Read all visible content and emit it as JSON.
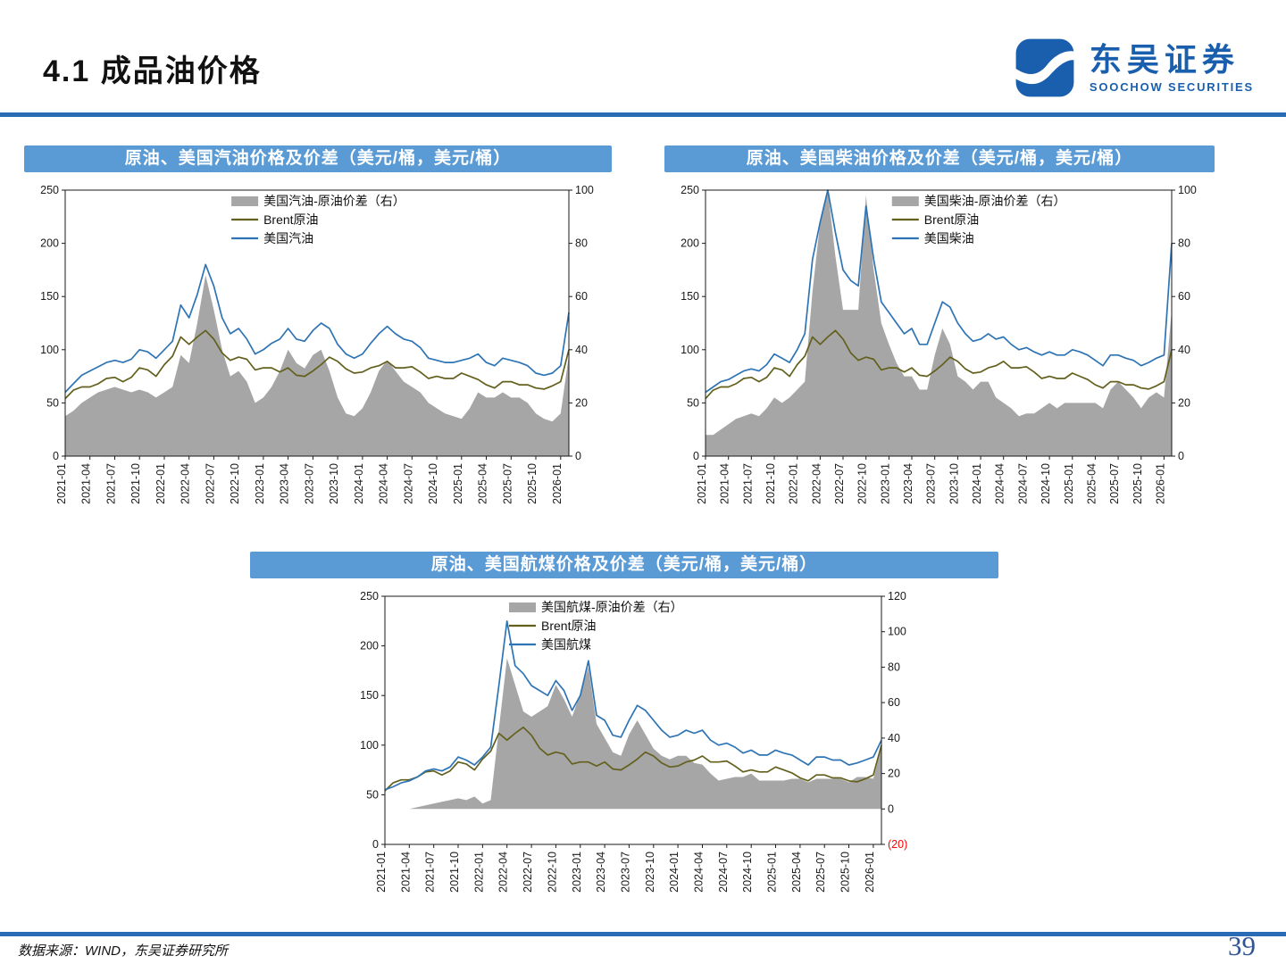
{
  "header": {
    "title": "4.1 成品油价格",
    "brand_cn": "东吴证券",
    "brand_en": "SOOCHOW SECURITIES"
  },
  "footer": {
    "source": "数据来源：WIND，东吴证券研究所",
    "page_number": "39"
  },
  "colors": {
    "product_line": "#2E74B5",
    "brent_line": "#63601D",
    "spread_area": "#A6A6A6",
    "panel_header_bg": "#5B9BD5",
    "accent_rule": "#2A6BB8",
    "neg_tick": "#FF0000",
    "axis": "#1a1a1a"
  },
  "chart_data": [
    {
      "type": "line+area",
      "title": "原油、美国汽油价格及价差（美元/桶，美元/桶）",
      "left_ylim": [
        0,
        250
      ],
      "right_ylim": [
        0,
        100
      ],
      "left_ticks": [
        0,
        50,
        100,
        150,
        200,
        250
      ],
      "right_ticks": [
        [
          100,
          "100"
        ],
        [
          80,
          "80"
        ],
        [
          60,
          "60"
        ],
        [
          40,
          "40"
        ],
        [
          20,
          "20"
        ],
        [
          0,
          "0"
        ]
      ],
      "legend_x": 0.33,
      "legend": [
        {
          "type": "area",
          "label": "美国汽油-原油价差（右）"
        },
        {
          "type": "line",
          "series": "brent",
          "label": "Brent原油"
        },
        {
          "type": "line",
          "series": "product",
          "label": "美国汽油"
        }
      ],
      "x_tick_labels": [
        "2021-01",
        "2021-04",
        "2021-07",
        "2021-10",
        "2022-01",
        "2022-04",
        "2022-07",
        "2022-10",
        "2023-01",
        "2023-04",
        "2023-07",
        "2023-10",
        "2024-01",
        "2024-04",
        "2024-07",
        "2024-10",
        "2025-01",
        "2025-04",
        "2025-07",
        "2025-10",
        "2026-01"
      ],
      "series": {
        "spread": [
          15,
          17,
          20,
          22,
          24,
          25,
          26,
          25,
          24,
          25,
          24,
          22,
          24,
          26,
          38,
          35,
          50,
          68,
          55,
          40,
          30,
          32,
          28,
          20,
          22,
          26,
          32,
          40,
          35,
          33,
          38,
          40,
          32,
          22,
          16,
          15,
          18,
          24,
          32,
          36,
          32,
          28,
          26,
          24,
          20,
          18,
          16,
          15,
          14,
          18,
          24,
          22,
          22,
          24,
          22,
          22,
          20,
          16,
          14,
          13,
          16,
          38
        ],
        "brent": [
          54,
          62,
          65,
          65,
          68,
          73,
          74,
          70,
          74,
          83,
          81,
          75,
          86,
          94,
          112,
          105,
          112,
          118,
          110,
          97,
          90,
          93,
          91,
          81,
          83,
          83,
          79,
          83,
          76,
          75,
          80,
          86,
          93,
          89,
          82,
          78,
          79,
          83,
          85,
          89,
          83,
          83,
          84,
          79,
          73,
          75,
          73,
          73,
          78,
          75,
          72,
          67,
          64,
          70,
          70,
          67,
          67,
          64,
          63,
          66,
          70,
          100
        ],
        "product": [
          60,
          68,
          76,
          80,
          84,
          88,
          90,
          88,
          91,
          100,
          98,
          92,
          100,
          108,
          142,
          130,
          152,
          180,
          160,
          130,
          115,
          120,
          110,
          96,
          100,
          106,
          110,
          120,
          110,
          108,
          118,
          125,
          120,
          105,
          96,
          92,
          96,
          106,
          115,
          122,
          115,
          110,
          108,
          102,
          92,
          90,
          88,
          88,
          90,
          92,
          96,
          88,
          85,
          92,
          90,
          88,
          85,
          78,
          76,
          78,
          85,
          135
        ]
      }
    },
    {
      "type": "line+area",
      "title": "原油、美国柴油价格及价差（美元/桶，美元/桶）",
      "left_ylim": [
        0,
        250
      ],
      "right_ylim": [
        0,
        100
      ],
      "left_ticks": [
        0,
        50,
        100,
        150,
        200,
        250
      ],
      "right_ticks": [
        [
          100,
          "100"
        ],
        [
          80,
          "80"
        ],
        [
          60,
          "60"
        ],
        [
          40,
          "40"
        ],
        [
          20,
          "20"
        ],
        [
          0,
          "0"
        ]
      ],
      "legend_x": 0.4,
      "legend": [
        {
          "type": "area",
          "label": "美国柴油-原油价差（右）"
        },
        {
          "type": "line",
          "series": "brent",
          "label": "Brent原油"
        },
        {
          "type": "line",
          "series": "product",
          "label": "美国柴油"
        }
      ],
      "x_tick_labels": [
        "2021-01",
        "2021-04",
        "2021-07",
        "2021-10",
        "2022-01",
        "2022-04",
        "2022-07",
        "2022-10",
        "2023-01",
        "2023-04",
        "2023-07",
        "2023-10",
        "2024-01",
        "2024-04",
        "2024-07",
        "2024-10",
        "2025-01",
        "2025-04",
        "2025-07",
        "2025-10",
        "2026-01"
      ],
      "series": {
        "spread": [
          8,
          8,
          10,
          12,
          14,
          15,
          16,
          15,
          18,
          22,
          20,
          22,
          25,
          28,
          62,
          88,
          100,
          75,
          55,
          55,
          55,
          98,
          70,
          50,
          42,
          35,
          30,
          30,
          25,
          25,
          38,
          48,
          42,
          30,
          28,
          25,
          28,
          28,
          22,
          20,
          18,
          15,
          16,
          16,
          18,
          20,
          18,
          20,
          20,
          20,
          20,
          20,
          18,
          25,
          28,
          25,
          22,
          18,
          22,
          24,
          22,
          55
        ],
        "brent": [
          54,
          62,
          65,
          65,
          68,
          73,
          74,
          70,
          74,
          83,
          81,
          75,
          86,
          94,
          112,
          105,
          112,
          118,
          110,
          97,
          90,
          93,
          91,
          81,
          83,
          83,
          79,
          83,
          76,
          75,
          80,
          86,
          93,
          89,
          82,
          78,
          79,
          83,
          85,
          89,
          83,
          83,
          84,
          79,
          73,
          75,
          73,
          73,
          78,
          75,
          72,
          67,
          64,
          70,
          70,
          67,
          67,
          64,
          63,
          66,
          70,
          100
        ],
        "product": [
          60,
          65,
          70,
          72,
          76,
          80,
          82,
          80,
          86,
          96,
          92,
          88,
          100,
          115,
          185,
          220,
          250,
          210,
          175,
          165,
          160,
          235,
          185,
          145,
          135,
          125,
          115,
          120,
          105,
          105,
          125,
          145,
          140,
          125,
          115,
          108,
          110,
          115,
          110,
          112,
          105,
          100,
          102,
          98,
          95,
          98,
          95,
          95,
          100,
          98,
          95,
          90,
          85,
          95,
          95,
          92,
          90,
          85,
          88,
          92,
          95,
          200
        ]
      }
    },
    {
      "type": "line+area",
      "title": "原油、美国航煤价格及价差（美元/桶，美元/桶）",
      "left_ylim": [
        0,
        250
      ],
      "right_ylim": [
        -20,
        120
      ],
      "left_ticks": [
        0,
        50,
        100,
        150,
        200,
        250
      ],
      "right_ticks": [
        [
          120,
          "120"
        ],
        [
          100,
          "100"
        ],
        [
          80,
          "80"
        ],
        [
          60,
          "60"
        ],
        [
          40,
          "40"
        ],
        [
          20,
          "20"
        ],
        [
          0,
          "0"
        ],
        [
          -20,
          "(20)"
        ]
      ],
      "legend_x": 0.25,
      "legend": [
        {
          "type": "area",
          "label": "美国航煤-原油价差（右）"
        },
        {
          "type": "line",
          "series": "brent",
          "label": "Brent原油"
        },
        {
          "type": "line",
          "series": "product",
          "label": "美国航煤"
        }
      ],
      "x_tick_labels": [
        "2021-01",
        "2021-04",
        "2021-07",
        "2021-10",
        "2022-01",
        "2022-04",
        "2022-07",
        "2022-10",
        "2023-01",
        "2023-04",
        "2023-07",
        "2023-10",
        "2024-01",
        "2024-04",
        "2024-07",
        "2024-10",
        "2025-01",
        "2025-04",
        "2025-07",
        "2025-10",
        "2026-01"
      ],
      "series": {
        "spread": [
          0,
          0,
          0,
          0,
          1,
          2,
          3,
          4,
          5,
          6,
          5,
          7,
          3,
          5,
          45,
          85,
          70,
          55,
          52,
          55,
          58,
          70,
          62,
          52,
          65,
          80,
          48,
          40,
          32,
          30,
          42,
          50,
          42,
          34,
          30,
          28,
          30,
          30,
          26,
          25,
          20,
          16,
          17,
          18,
          18,
          20,
          16,
          16,
          16,
          16,
          17,
          17,
          15,
          17,
          17,
          17,
          17,
          15,
          18,
          18,
          17,
          35
        ],
        "brent": [
          54,
          62,
          65,
          65,
          68,
          73,
          74,
          70,
          74,
          83,
          81,
          75,
          86,
          94,
          112,
          105,
          112,
          118,
          110,
          97,
          90,
          93,
          91,
          81,
          83,
          83,
          79,
          83,
          76,
          75,
          80,
          86,
          93,
          89,
          82,
          78,
          79,
          83,
          85,
          89,
          83,
          83,
          84,
          79,
          73,
          75,
          73,
          73,
          78,
          75,
          72,
          67,
          64,
          70,
          70,
          67,
          67,
          64,
          63,
          66,
          70,
          100
        ],
        "product": [
          55,
          58,
          62,
          64,
          68,
          74,
          76,
          74,
          78,
          88,
          85,
          80,
          88,
          98,
          160,
          225,
          180,
          172,
          160,
          155,
          150,
          165,
          155,
          135,
          150,
          185,
          130,
          125,
          110,
          108,
          125,
          140,
          135,
          125,
          115,
          108,
          110,
          115,
          112,
          115,
          105,
          100,
          102,
          98,
          92,
          95,
          90,
          90,
          95,
          92,
          90,
          85,
          80,
          88,
          88,
          85,
          85,
          80,
          82,
          85,
          88,
          105
        ]
      }
    }
  ]
}
